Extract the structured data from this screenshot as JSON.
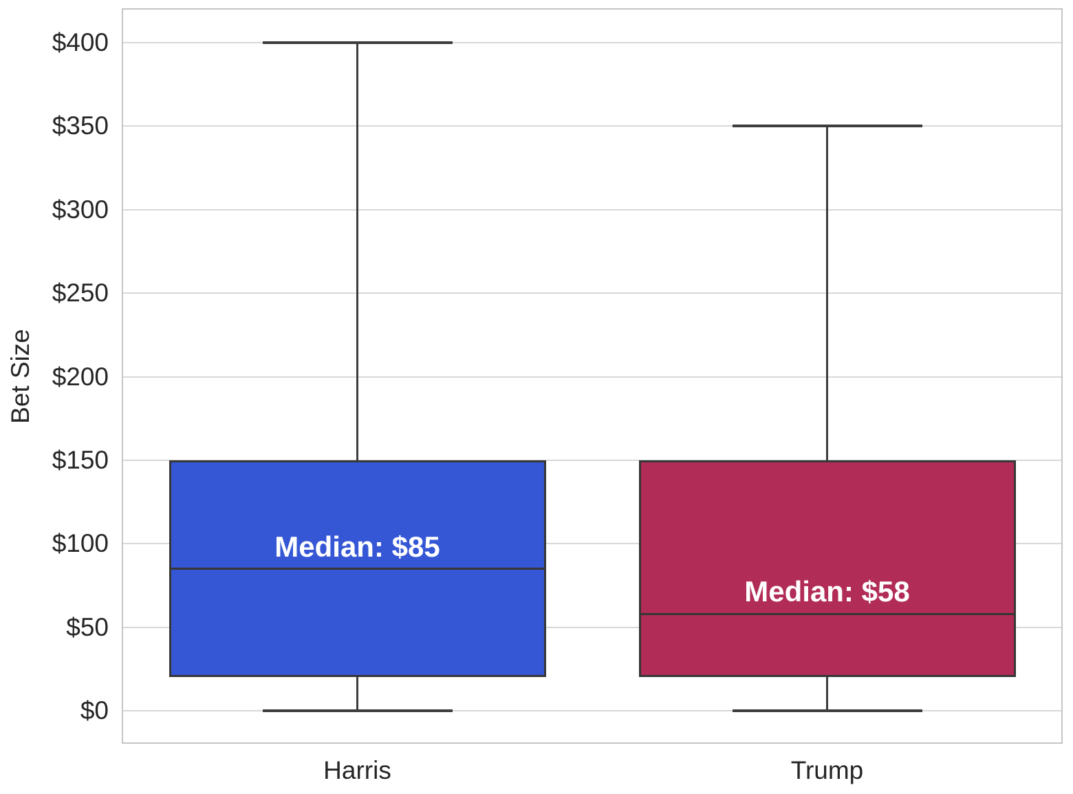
{
  "chart_data": {
    "type": "box",
    "title": "",
    "xlabel": "",
    "ylabel": "Bet Size",
    "ylim": [
      0,
      400
    ],
    "yticks": [
      0,
      50,
      100,
      150,
      200,
      250,
      300,
      350,
      400
    ],
    "ytick_prefix": "$",
    "grid": true,
    "legend_position": "none",
    "categories": [
      "Harris",
      "Trump"
    ],
    "series": [
      {
        "name": "Harris",
        "color": "#3557D5",
        "whisker_low": 0,
        "q1": 20,
        "median": 85,
        "q3": 150,
        "whisker_high": 400,
        "annotation": "Median: $85"
      },
      {
        "name": "Trump",
        "color": "#B12C57",
        "whisker_low": 0,
        "q1": 20,
        "median": 58,
        "q3": 150,
        "whisker_high": 350,
        "annotation": "Median: $58"
      }
    ],
    "colors": {
      "background": "#ffffff",
      "box_edge": "#363636",
      "whisker": "#3d3d3d",
      "median_line": "#363636",
      "gridline": "#d8d8d8",
      "plot_border": "#c6c6c6",
      "tick_text": "#262626",
      "annotation_text": "#ffffff"
    }
  }
}
